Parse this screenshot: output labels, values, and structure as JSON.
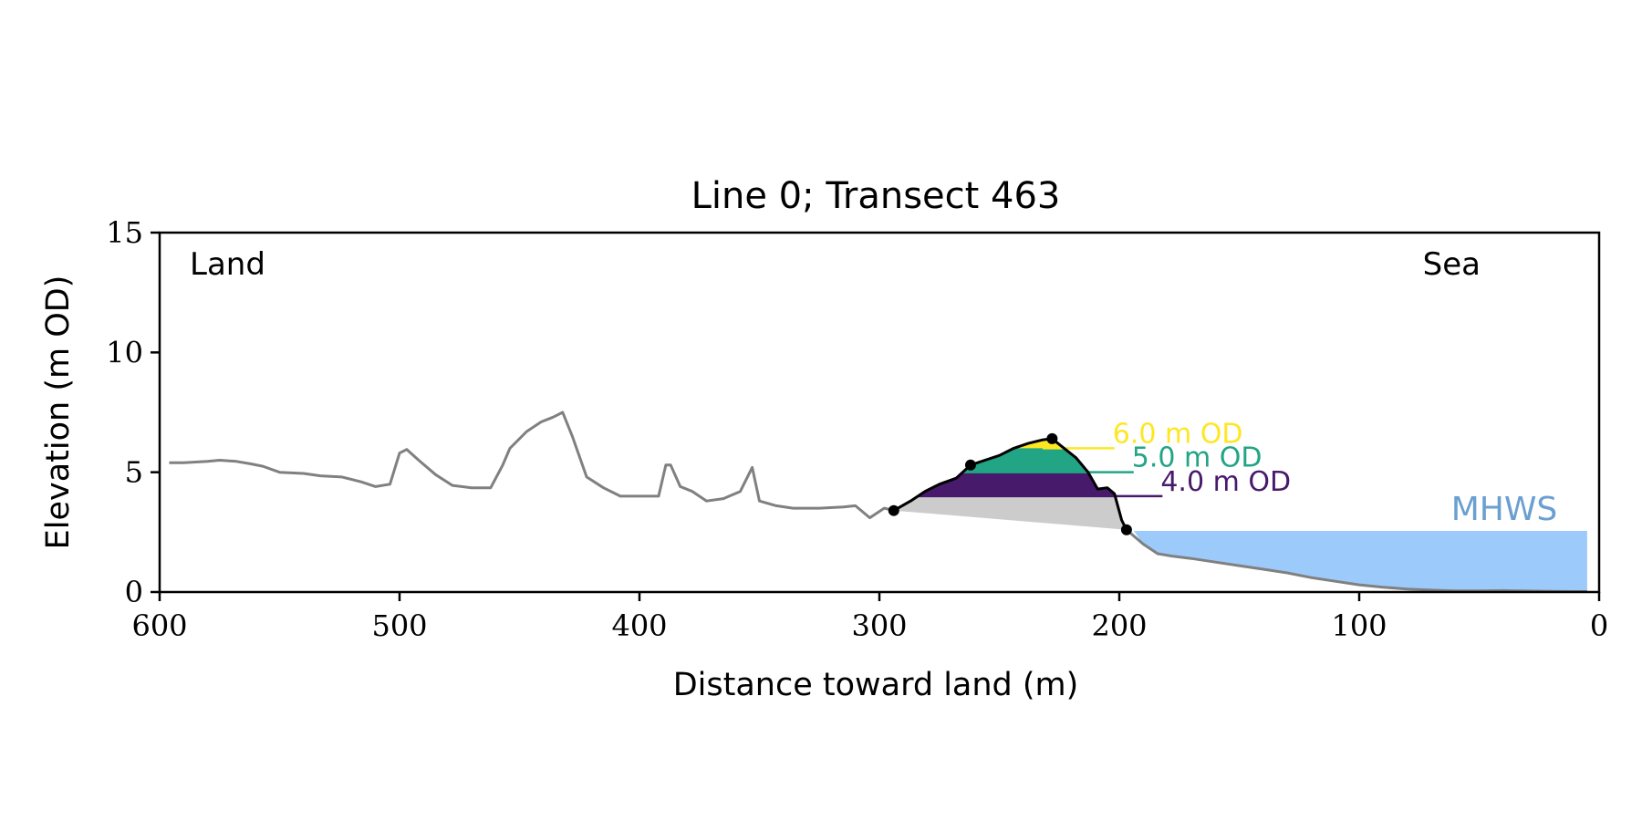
{
  "chart_data": {
    "type": "line",
    "title": "Line 0; Transect 463",
    "xlabel": "Distance toward land (m)",
    "ylabel": "Elevation (m OD)",
    "xlim": [
      600,
      0
    ],
    "ylim": [
      0,
      15
    ],
    "x_ticks": [
      600,
      500,
      400,
      300,
      200,
      100,
      0
    ],
    "y_ticks": [
      0,
      5,
      10,
      15
    ],
    "grid": false,
    "corner_labels": {
      "left": "Land",
      "right": "Sea"
    },
    "colors": {
      "profile": "#808080",
      "dune_outline": "#000000",
      "base_fill": "#cccccc",
      "level_6": "#fde725",
      "level_5": "#21a585",
      "level_4": "#481a6c",
      "mhws_fill": "#9ccbfb",
      "mhws_text": "#6a9fd0"
    },
    "profile": [
      [
        596,
        5.4
      ],
      [
        590,
        5.4
      ],
      [
        580,
        5.45
      ],
      [
        575,
        5.5
      ],
      [
        568,
        5.45
      ],
      [
        562,
        5.35
      ],
      [
        557,
        5.25
      ],
      [
        550,
        5.0
      ],
      [
        540,
        4.95
      ],
      [
        533,
        4.85
      ],
      [
        524,
        4.8
      ],
      [
        516,
        4.6
      ],
      [
        510,
        4.4
      ],
      [
        504,
        4.5
      ],
      [
        500,
        5.8
      ],
      [
        497,
        5.95
      ],
      [
        492,
        5.5
      ],
      [
        485,
        4.9
      ],
      [
        478,
        4.45
      ],
      [
        470,
        4.35
      ],
      [
        462,
        4.35
      ],
      [
        457,
        5.3
      ],
      [
        454,
        6.0
      ],
      [
        447,
        6.7
      ],
      [
        441,
        7.1
      ],
      [
        436,
        7.3
      ],
      [
        432,
        7.5
      ],
      [
        428,
        6.5
      ],
      [
        422,
        4.8
      ],
      [
        415,
        4.35
      ],
      [
        408,
        4.0
      ],
      [
        400,
        4.0
      ],
      [
        392,
        4.0
      ],
      [
        389,
        5.3
      ],
      [
        387,
        5.3
      ],
      [
        383,
        4.4
      ],
      [
        378,
        4.2
      ],
      [
        372,
        3.8
      ],
      [
        365,
        3.9
      ],
      [
        358,
        4.2
      ],
      [
        353,
        5.2
      ],
      [
        350,
        3.8
      ],
      [
        343,
        3.6
      ],
      [
        336,
        3.5
      ],
      [
        325,
        3.5
      ],
      [
        315,
        3.55
      ],
      [
        310,
        3.6
      ],
      [
        304,
        3.1
      ],
      [
        298,
        3.5
      ],
      [
        294,
        3.4
      ]
    ],
    "dune_outline": [
      [
        294,
        3.4
      ],
      [
        287,
        3.8
      ],
      [
        281,
        4.2
      ],
      [
        275,
        4.5
      ],
      [
        268,
        4.75
      ],
      [
        262,
        5.3
      ],
      [
        256,
        5.5
      ],
      [
        250,
        5.7
      ],
      [
        244,
        6.0
      ],
      [
        238,
        6.2
      ],
      [
        232,
        6.35
      ],
      [
        228,
        6.4
      ],
      [
        223,
        6.0
      ],
      [
        218,
        5.6
      ],
      [
        213,
        5.0
      ],
      [
        209,
        4.3
      ],
      [
        205,
        4.35
      ],
      [
        202,
        4.1
      ],
      [
        199,
        3.0
      ],
      [
        197,
        2.6
      ]
    ],
    "dune_points": [
      [
        294,
        3.4
      ],
      [
        262,
        5.3
      ],
      [
        228,
        6.4
      ],
      [
        197,
        2.6
      ]
    ],
    "beach_profile": [
      [
        197,
        2.6
      ],
      [
        190,
        2.0
      ],
      [
        184,
        1.6
      ],
      [
        178,
        1.5
      ],
      [
        170,
        1.4
      ],
      [
        160,
        1.25
      ],
      [
        150,
        1.1
      ],
      [
        140,
        0.95
      ],
      [
        130,
        0.8
      ],
      [
        120,
        0.6
      ],
      [
        110,
        0.45
      ],
      [
        100,
        0.3
      ],
      [
        90,
        0.2
      ],
      [
        80,
        0.12
      ],
      [
        70,
        0.08
      ],
      [
        60,
        0.05
      ],
      [
        50,
        0.05
      ],
      [
        40,
        0.06
      ],
      [
        30,
        0.04
      ],
      [
        20,
        0.03
      ],
      [
        10,
        0.02
      ],
      [
        5,
        0.02
      ]
    ],
    "levels": [
      {
        "label": "6.0 m OD",
        "elevation": 6.0,
        "fill": [
          [
            232,
            6.0
          ],
          [
            223,
            6.0
          ]
        ],
        "line_x": [
          232,
          202
        ],
        "color": "#fde725"
      },
      {
        "label": "5.0 m OD",
        "elevation": 5.0,
        "fill": [
          [
            265,
            5.0
          ],
          [
            213,
            5.0
          ]
        ],
        "line_x": [
          265,
          194
        ],
        "color": "#21a585"
      },
      {
        "label": "4.0 m OD",
        "elevation": 4.0,
        "fill": [
          [
            284,
            4.0
          ],
          [
            202,
            4.0
          ]
        ],
        "line_x": [
          284,
          182
        ],
        "color": "#481a6c"
      }
    ],
    "mhws": {
      "label": "MHWS",
      "elevation": 2.55,
      "x_start": 194,
      "x_end": 5
    }
  }
}
